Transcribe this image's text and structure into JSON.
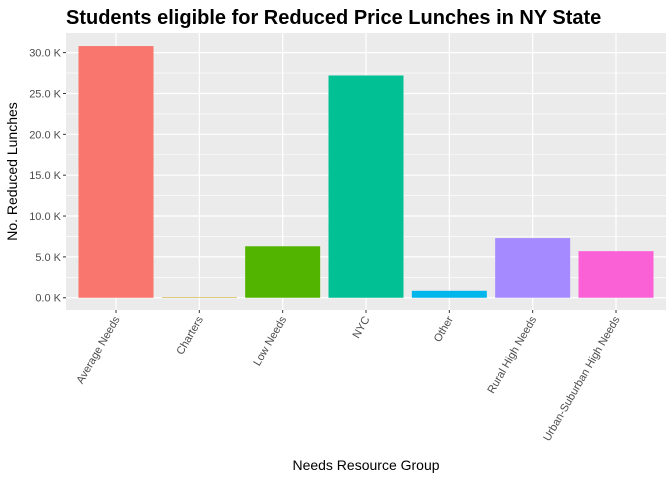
{
  "chart_data": {
    "type": "bar",
    "title": "Students eligible for Reduced Price Lunches in NY State",
    "xlabel": "Needs Resource Group",
    "ylabel": "No. Reduced Lunches",
    "categories": [
      "Average Needs",
      "Charters",
      "Low Needs",
      "NYC",
      "Other",
      "Rural High Needs",
      "Urban-Suburban High Needs"
    ],
    "values": [
      30800,
      60,
      6300,
      27200,
      850,
      7300,
      5700
    ],
    "colors": [
      "#F8766D",
      "#C49A00",
      "#53B400",
      "#00C094",
      "#00B6EB",
      "#A58AFF",
      "#FB61D7"
    ],
    "ylim": [
      -1500,
      32400
    ],
    "yticks": [
      0,
      5000,
      10000,
      15000,
      20000,
      25000,
      30000
    ],
    "ytick_labels": [
      "0.0 K",
      "5.0 K",
      "10.0 K",
      "15.0 K",
      "20.0 K",
      "25.0 K",
      "30.0 K"
    ],
    "panel_background": "#EBEBEB",
    "gridline_color": "#FFFFFF",
    "grid": true,
    "legend": "none"
  }
}
